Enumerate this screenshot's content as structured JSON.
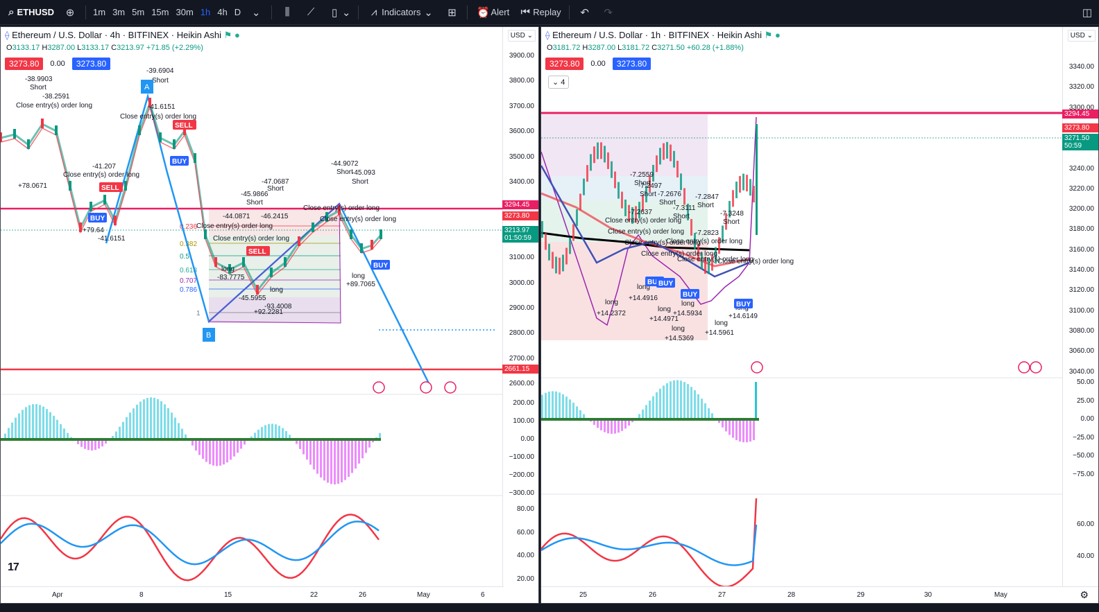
{
  "toolbar": {
    "symbol": "ETHUSD",
    "intervals": [
      "1m",
      "3m",
      "5m",
      "15m",
      "30m",
      "1h",
      "4h",
      "D"
    ],
    "active_interval": "1h",
    "indicators_label": "Indicators",
    "alert_label": "Alert",
    "replay_label": "Replay"
  },
  "left": {
    "title": "Ethereum / U.S. Dollar · 4h · BITFINEX · Heikin Ashi",
    "ohlc": {
      "o": "3133.17",
      "h": "3287.00",
      "l": "3133.17",
      "c": "3213.97",
      "chg": "+71.85 (+2.29%)"
    },
    "tag_left": "3273.80",
    "tag_mid": "0.00",
    "tag_right": "3273.80",
    "currency": "USD",
    "price_ticks": [
      "3900.00",
      "3800.00",
      "3700.00",
      "3600.00",
      "3500.00",
      "3400.00",
      "3300.00",
      "3200.00",
      "3100.00",
      "3000.00",
      "2900.00",
      "2800.00",
      "2700.00",
      "2600.00"
    ],
    "osc_ticks": [
      "200.00",
      "100.00",
      "0.00",
      "−100.00",
      "−200.00",
      "−300.00"
    ],
    "rsi_ticks": [
      "80.00",
      "60.00",
      "40.00",
      "20.00"
    ],
    "x_labels": [
      "Apr",
      "8",
      "15",
      "22",
      "26",
      "May",
      "6"
    ],
    "price_tag_1": "3294.45",
    "price_tag_2": "3273.80",
    "price_tag_3": "3213.97",
    "price_tag_3_time": "01:50:59",
    "price_tag_4": "2661.15",
    "labels": {
      "a": "A",
      "b": "B",
      "buy": "BUY",
      "sell": "SELL",
      "short": "Short",
      "long": "long",
      "close_long": "Close entry(s) order long",
      "v1": "-39.6904",
      "v2": "-41.6151",
      "v3": "-38.9903",
      "v4": "-38.2591",
      "v5": "-41.207",
      "v6": "+78.0671",
      "v7": "+79.64",
      "v8": "-41.6151",
      "v9": "-44.9072",
      "v10": "-45.093",
      "v11": "-47.0687",
      "v12": "-45.9866",
      "v13": "-44.0871",
      "v14": "-46.2415",
      "v15": "+89.7065",
      "v16": "-83.7775",
      "v17": "-45.5955",
      "v18": "+92.2281",
      "v19": "-93.4008",
      "fib1": "1",
      "fib618": "0.618",
      "fib707": "0.707",
      "fib786": "0.786",
      "fib382": "0.382",
      "fib5": "0.5",
      "fib236": "0.236"
    }
  },
  "right": {
    "title": "Ethereum / U.S. Dollar · 1h · BITFINEX · Heikin Ashi",
    "ohlc": {
      "o": "3181.72",
      "h": "3287.00",
      "l": "3181.72",
      "c": "3271.50",
      "chg": "+60.28 (+1.88%)"
    },
    "tag_left": "3273.80",
    "tag_mid": "0.00",
    "tag_right": "3273.80",
    "stepper": "4",
    "currency": "USD",
    "price_ticks": [
      "3340.00",
      "3320.00",
      "3300.00",
      "3280.00",
      "3260.00",
      "3240.00",
      "3220.00",
      "3200.00",
      "3180.00",
      "3160.00",
      "3140.00",
      "3120.00",
      "3100.00",
      "3080.00",
      "3060.00",
      "3040.00"
    ],
    "osc_ticks": [
      "50.00",
      "25.00",
      "0.00",
      "−25.00",
      "−50.00",
      "−75.00"
    ],
    "rsi_ticks": [
      "60.00",
      "40.00"
    ],
    "x_labels": [
      "25",
      "26",
      "27",
      "28",
      "29",
      "30",
      "May"
    ],
    "price_tag_1": "3294.45",
    "price_tag_2": "3273.80",
    "price_tag_3": "3271.50",
    "price_tag_3_time": "50:59",
    "labels": {
      "buy": "BUY",
      "short": "Short",
      "long": "long",
      "close_long": "Close entry(s) order long",
      "v1": "-7.2559",
      "v2": "-7.2497",
      "v3": "-7.2676",
      "v4": "-7.2847",
      "v5": "-7.3111",
      "v6": "-7.2637",
      "v7": "-7.3248",
      "v8": "-7.2823",
      "v9": "+14.4916",
      "v10": "+14.2372",
      "v11": "+14.4971",
      "v12": "+14.5934",
      "v13": "+14.5369",
      "v14": "+14.5961",
      "v15": "+14.6149"
    }
  }
}
